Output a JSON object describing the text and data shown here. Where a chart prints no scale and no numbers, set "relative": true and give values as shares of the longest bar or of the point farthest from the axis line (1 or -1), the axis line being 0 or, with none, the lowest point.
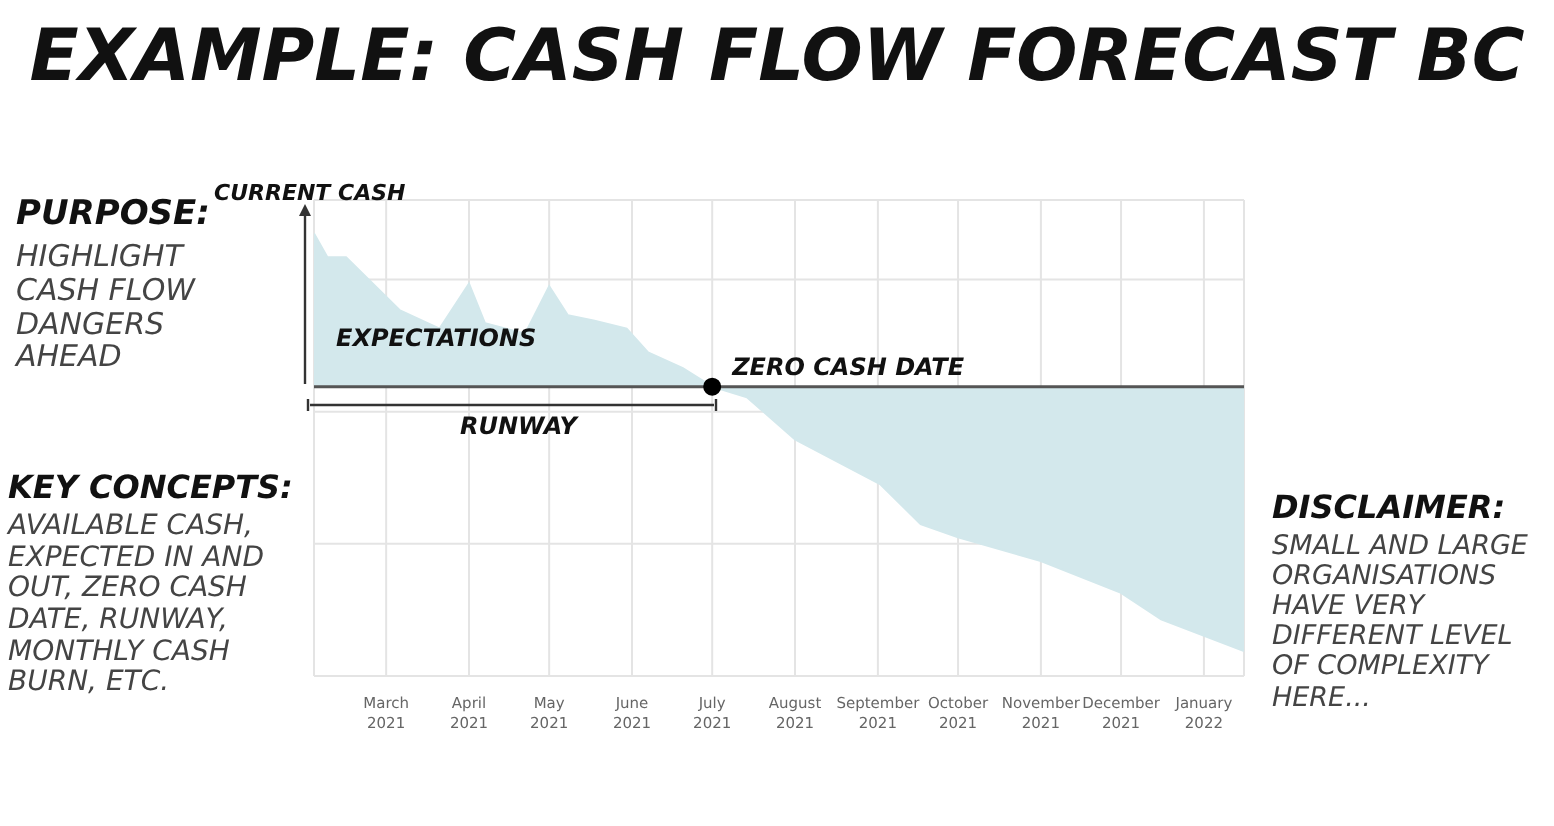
{
  "chart_data": {
    "type": "area",
    "title": "EXAMPLE: CASH FLOW FORECAST BC",
    "relative": true,
    "color": "#d3e8ec",
    "x": [
      "2021-02-02",
      "2021-02-07",
      "2021-02-14",
      "2021-02-21",
      "2021-03-06",
      "2021-03-21",
      "2021-04-01",
      "2021-04-07",
      "2021-04-22",
      "2021-05-01",
      "2021-05-08",
      "2021-05-18",
      "2021-05-30",
      "2021-06-07",
      "2021-06-20",
      "2021-07-01",
      "2021-07-14",
      "2021-08-01",
      "2021-09-02",
      "2021-09-17",
      "2021-10-01",
      "2021-11-01",
      "2021-12-01",
      "2021-12-16",
      "2022-01-16"
    ],
    "values": [
      0.58,
      0.49,
      0.49,
      0.42,
      0.29,
      0.22,
      0.39,
      0.24,
      0.2,
      0.38,
      0.27,
      0.25,
      0.22,
      0.13,
      0.07,
      0,
      -0.04,
      -0.2,
      -0.37,
      -0.52,
      -0.57,
      -0.66,
      -0.78,
      -0.88,
      -1
    ],
    "xlim": [
      "2021-02-02",
      "2022-01-16"
    ],
    "xticks": [
      {
        "value": "2021-03-01",
        "label": "March 2021"
      },
      {
        "value": "2021-04-01",
        "label": "April 2021"
      },
      {
        "value": "2021-05-01",
        "label": "May 2021"
      },
      {
        "value": "2021-06-01",
        "label": "June 2021"
      },
      {
        "value": "2021-07-01",
        "label": "July 2021"
      },
      {
        "value": "2021-08-01",
        "label": "August 2021"
      },
      {
        "value": "2021-09-01",
        "label": "September 2021"
      },
      {
        "value": "2021-10-01",
        "label": "October 2021"
      },
      {
        "value": "2021-11-01",
        "label": "November 2021"
      },
      {
        "value": "2021-12-01",
        "label": "December 2021"
      },
      {
        "value": "2022-01-01",
        "label": "January 2022"
      }
    ],
    "grid": true,
    "annotations": [
      "CURRENT CASH",
      "EXPECTATIONS",
      "RUNWAY",
      {
        "text": "ZERO CASH DATE",
        "x": "2021-07-01",
        "y": 0
      },
      "PURPOSE:",
      "HIGHLIGHT CASH FLOW DANGERS AHEAD",
      "KEY CONCEPTS:",
      "AVAILABLE CASH, EXPECTED IN AND OUT, ZERO CASH DATE, RUNWAY, MONTHLY CASH BURN, ETC.",
      "DISCLAIMER:",
      "SMALL AND LARGE ORGANISATIONS HAVE VERY DIFFERENT LEVEL OF COMPLEXITY HERE..."
    ]
  }
}
